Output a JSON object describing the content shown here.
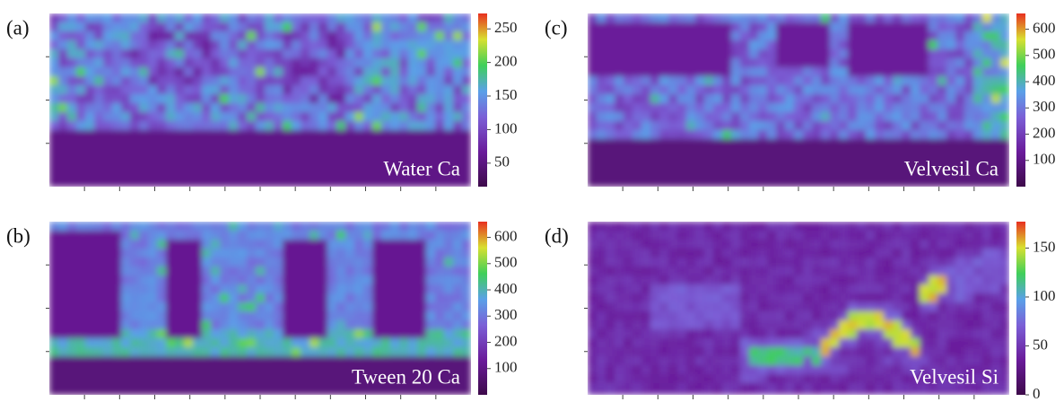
{
  "chart_data": [
    {
      "type": "heatmap",
      "label": "(a)",
      "annotation": "Water Ca",
      "clim": [
        15,
        273
      ],
      "cticks": [
        50,
        100,
        150,
        200,
        250
      ]
    },
    {
      "type": "heatmap",
      "label": "(c)",
      "annotation": "Velvesil Ca",
      "clim": [
        0,
        660
      ],
      "cticks": [
        100,
        200,
        300,
        400,
        500,
        600
      ]
    },
    {
      "type": "heatmap",
      "label": "(b)",
      "annotation": "Tween 20 Ca",
      "clim": [
        0,
        660
      ],
      "cticks": [
        100,
        200,
        300,
        400,
        500,
        600
      ]
    },
    {
      "type": "heatmap",
      "label": "(d)",
      "annotation": "Velvesil Si",
      "clim": [
        0,
        177
      ],
      "cticks": [
        0,
        50,
        100,
        150
      ]
    }
  ]
}
